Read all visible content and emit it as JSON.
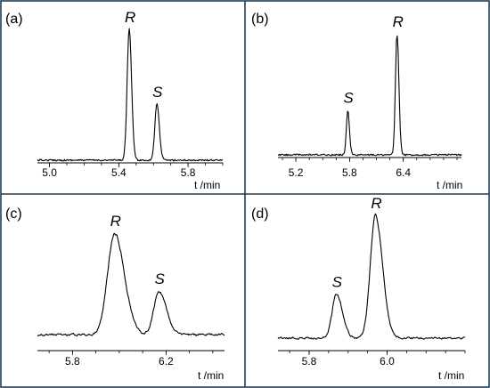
{
  "chart_data": [
    {
      "type": "line",
      "panel_label": "(a)",
      "xlabel": "t /min",
      "ticks": [
        "5.0",
        "5.4",
        "5.8"
      ],
      "tick_values": [
        5.0,
        5.4,
        5.8
      ],
      "xlim": [
        4.93,
        6.0
      ],
      "peaks": [
        {
          "label": "R",
          "x": 5.46,
          "height": 1.0
        },
        {
          "label": "S",
          "x": 5.62,
          "height": 0.43
        }
      ]
    },
    {
      "type": "line",
      "panel_label": "(b)",
      "xlabel": "t /min",
      "ticks": [
        "5.2",
        "5.8",
        "6.4"
      ],
      "tick_values": [
        5.2,
        5.8,
        6.4
      ],
      "xlim": [
        5.0,
        7.05
      ],
      "peaks": [
        {
          "label": "S",
          "x": 5.78,
          "height": 0.37
        },
        {
          "label": "R",
          "x": 6.33,
          "height": 1.0
        }
      ]
    },
    {
      "type": "line",
      "panel_label": "(c)",
      "xlabel": "t /min",
      "ticks": [
        "5.8",
        "6.2"
      ],
      "tick_values": [
        5.8,
        6.2
      ],
      "xlim": [
        5.65,
        6.45
      ],
      "peaks": [
        {
          "label": "R",
          "x": 5.98,
          "height": 1.0
        },
        {
          "label": "S",
          "x": 6.17,
          "height": 0.43
        }
      ]
    },
    {
      "type": "line",
      "panel_label": "(d)",
      "xlabel": "t /min",
      "ticks": [
        "5.8",
        "6.0"
      ],
      "tick_values": [
        5.8,
        6.0
      ],
      "xlim": [
        5.72,
        6.2
      ],
      "peaks": [
        {
          "label": "S",
          "x": 5.87,
          "height": 0.36
        },
        {
          "label": "R",
          "x": 5.97,
          "height": 1.0
        }
      ]
    }
  ]
}
